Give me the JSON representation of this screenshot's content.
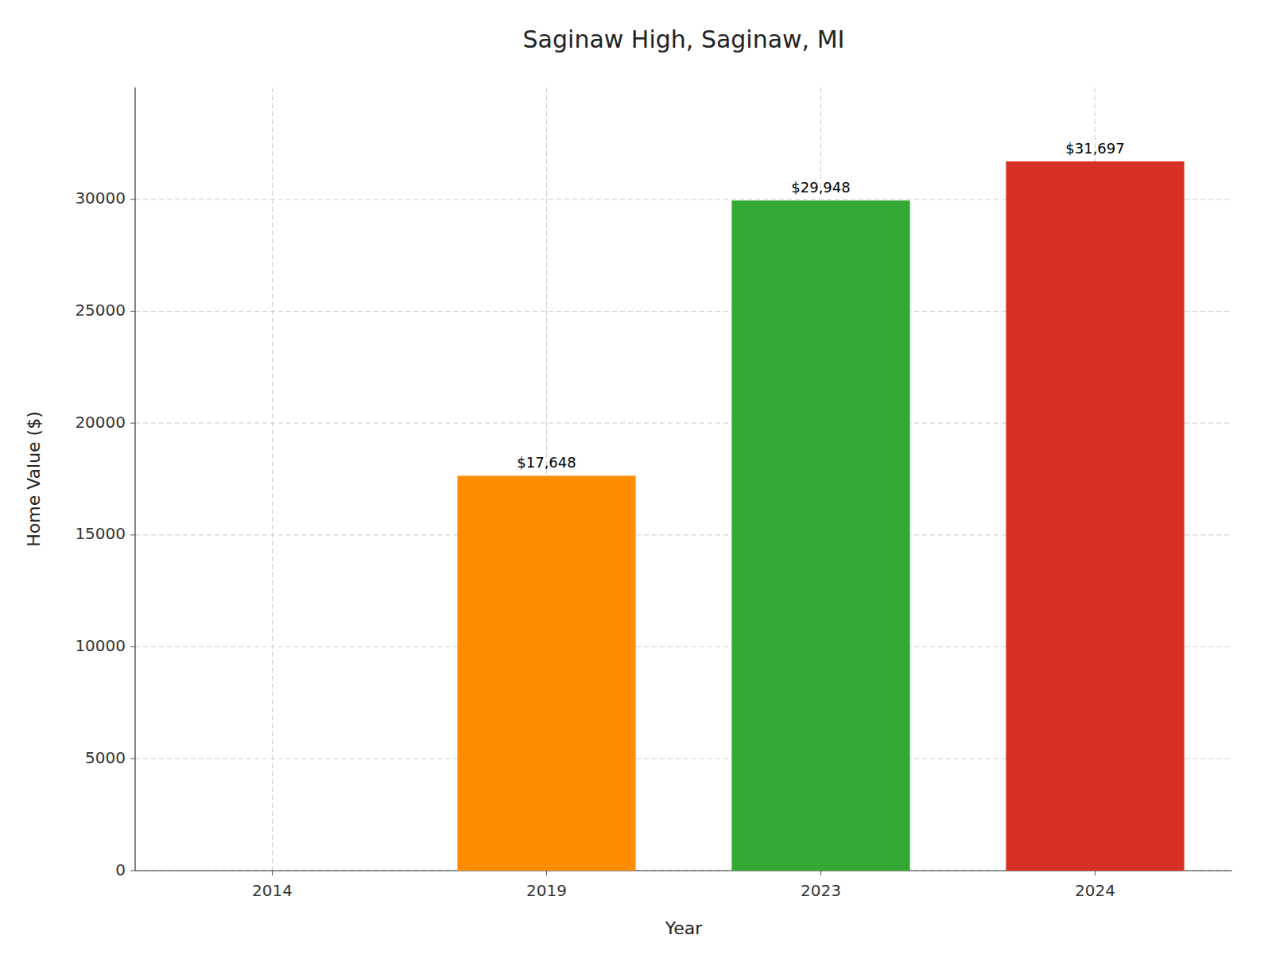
{
  "chart_data": {
    "type": "bar",
    "title": "Saginaw High, Saginaw, MI",
    "xlabel": "Year",
    "ylabel": "Home Value ($)",
    "categories": [
      "2014",
      "2019",
      "2023",
      "2024"
    ],
    "values": [
      0,
      17648,
      29948,
      31697
    ],
    "value_labels": [
      null,
      "$17,648",
      "$29,948",
      "$31,697"
    ],
    "colors": [
      "#ffffff",
      "#FF8C00",
      "#33A832",
      "#D93025"
    ],
    "ylim": [
      0,
      35000
    ],
    "yticks": [
      0,
      5000,
      10000,
      15000,
      20000,
      25000,
      30000
    ],
    "grid": true
  }
}
